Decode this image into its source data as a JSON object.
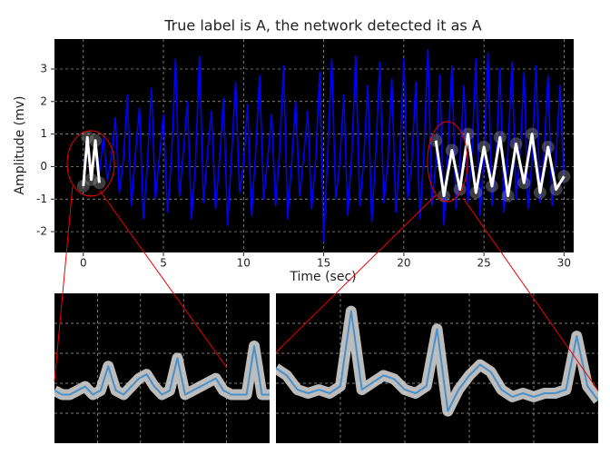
{
  "chart_data": [
    {
      "type": "line",
      "title": "True label is A, the network detected it as A",
      "xlabel": "Time (sec)",
      "ylabel": "Amplitude (mv)",
      "xlim": [
        -1.8,
        30.6
      ],
      "ylim": [
        -2.64,
        3.92
      ],
      "xticks": [
        0,
        5,
        10,
        15,
        20,
        25,
        30
      ],
      "yticks": [
        -2,
        -1,
        0,
        1,
        2,
        3
      ],
      "grid": true,
      "series": [
        {
          "color": "#0000ff",
          "x": [
            0,
            0.25,
            0.5,
            0.75,
            1,
            1.25,
            1.5,
            1.75,
            2,
            2.25,
            2.5,
            2.75,
            3,
            3.25,
            3.5,
            3.75,
            4,
            4.25,
            4.5,
            4.75,
            5,
            5.25,
            5.5,
            5.75,
            6,
            6.25,
            6.5,
            6.75,
            7,
            7.25,
            7.5,
            7.75,
            8,
            8.25,
            8.5,
            8.75,
            9,
            9.25,
            9.5,
            9.75,
            10,
            10.25,
            10.5,
            10.75,
            11,
            11.25,
            11.5,
            11.75,
            12,
            12.25,
            12.5,
            12.75,
            13,
            13.25,
            13.5,
            13.75,
            14,
            14.25,
            14.5,
            14.75,
            15,
            15.25,
            15.5,
            15.75,
            16,
            16.25,
            16.5,
            16.75,
            17,
            17.25,
            17.5,
            17.75,
            18,
            18.25,
            18.5,
            18.75,
            19,
            19.25,
            19.5,
            19.75,
            20,
            20.25,
            20.5,
            20.75,
            21,
            21.25,
            21.5,
            21.75,
            22,
            22.25,
            22.5,
            22.75,
            23,
            23.25,
            23.5,
            23.75,
            24,
            24.25,
            24.5,
            24.75,
            25,
            25.25,
            25.5,
            25.75,
            26,
            26.25,
            26.5,
            26.75,
            27,
            27.25,
            27.5,
            27.75,
            28,
            28.25,
            28.5,
            28.75,
            29,
            29.25,
            29.5,
            29.75,
            30
          ],
          "values": [
            0,
            0.6,
            -0.3,
            0.8,
            -0.2,
            0.9,
            -0.4,
            0.3,
            1.5,
            -0.8,
            0.2,
            2.2,
            -1.2,
            0.4,
            1.8,
            -1.6,
            0.1,
            2.4,
            -1.0,
            0.3,
            1.6,
            -1.4,
            0.2,
            3.3,
            -0.9,
            0.5,
            2.0,
            -1.6,
            0.1,
            3.4,
            -1.1,
            0.4,
            1.7,
            -1.3,
            0.2,
            2.1,
            -1.8,
            0.3,
            2.6,
            -0.8,
            0.1,
            1.9,
            -1.5,
            0.4,
            2.8,
            -1.0,
            0.2,
            1.6,
            -1.2,
            0.5,
            3.1,
            -1.6,
            0.1,
            2.0,
            -0.9,
            0.3,
            1.7,
            -1.3,
            0.2,
            2.9,
            -2.3,
            0.4,
            3.3,
            -1.0,
            0.1,
            2.2,
            -1.5,
            0.3,
            3.4,
            -1.2,
            0.2,
            2.5,
            -1.7,
            0.4,
            3.2,
            -1.1,
            0.1,
            2.7,
            -1.4,
            0.3,
            3.3,
            -1.0,
            0.2,
            2.6,
            -1.6,
            0.4,
            3.6,
            -1.2,
            0.1,
            2.8,
            -1.8,
            0.5,
            3.1,
            -1.3,
            0.2,
            2.5,
            -1.1,
            0.4,
            3.3,
            -1.5,
            0.3,
            3.5,
            -1.2,
            0.2,
            3.0,
            -1.4,
            0.5,
            3.2,
            -1.0,
            0.3,
            2.9,
            -1.3,
            0.2,
            3.1,
            -1.1,
            0.4,
            2.8,
            -1.2,
            0.3,
            2.5,
            -0.5
          ]
        },
        {
          "color": "#ffffff",
          "x": [
            0,
            0.25,
            0.5,
            0.75,
            1,
            1.5,
            22,
            22.5,
            23,
            23.5,
            24,
            24.5,
            25,
            25.5,
            26,
            26.5,
            27,
            27.5,
            28,
            28.5,
            29,
            29.5,
            30
          ],
          "values": [
            -0.6,
            0.9,
            -0.4,
            0.8,
            -0.5,
            null,
            0.8,
            -0.9,
            0.5,
            -0.7,
            1.0,
            -0.8,
            0.6,
            -0.6,
            0.9,
            -0.9,
            0.7,
            -0.5,
            1.0,
            -0.8,
            0.6,
            -0.7,
            -0.3
          ]
        }
      ]
    },
    {
      "type": "line",
      "ylim": [
        -1.5,
        2.2
      ],
      "xlim": [
        0,
        28
      ],
      "series": [
        {
          "color": "#4a90c8",
          "x": [
            0,
            1,
            2,
            3,
            4,
            5,
            6,
            7,
            8,
            9,
            10,
            11,
            12,
            13,
            14,
            15,
            16,
            17,
            18,
            19,
            20,
            21,
            22,
            23,
            24,
            25,
            26,
            27,
            28
          ],
          "values": [
            -0.2,
            -0.3,
            -0.3,
            -0.2,
            -0.1,
            -0.3,
            -0.2,
            0.4,
            -0.2,
            -0.3,
            -0.1,
            0.1,
            0.2,
            -0.1,
            -0.3,
            -0.2,
            0.6,
            -0.3,
            -0.2,
            -0.1,
            0,
            0.1,
            -0.2,
            -0.3,
            -0.3,
            -0.3,
            0.9,
            -0.3,
            -0.3
          ]
        }
      ]
    },
    {
      "type": "line",
      "ylim": [
        -1.8,
        2.4
      ],
      "xlim": [
        0,
        30
      ],
      "series": [
        {
          "color": "#4a90c8",
          "x": [
            0,
            1,
            2,
            3,
            4,
            5,
            6,
            7,
            8,
            9,
            10,
            11,
            12,
            13,
            14,
            15,
            16,
            17,
            18,
            19,
            20,
            21,
            22,
            23,
            24,
            25,
            26,
            27,
            28,
            29,
            30
          ],
          "values": [
            0.3,
            0.1,
            -0.3,
            -0.4,
            -0.3,
            -0.4,
            -0.2,
            1.9,
            -0.3,
            -0.1,
            0.1,
            0.0,
            -0.3,
            -0.4,
            -0.2,
            1.4,
            -0.9,
            -0.3,
            0.1,
            0.4,
            0.2,
            -0.3,
            -0.5,
            -0.4,
            -0.5,
            -0.4,
            -0.4,
            -0.3,
            1.2,
            -0.2,
            -0.6
          ]
        }
      ]
    }
  ]
}
